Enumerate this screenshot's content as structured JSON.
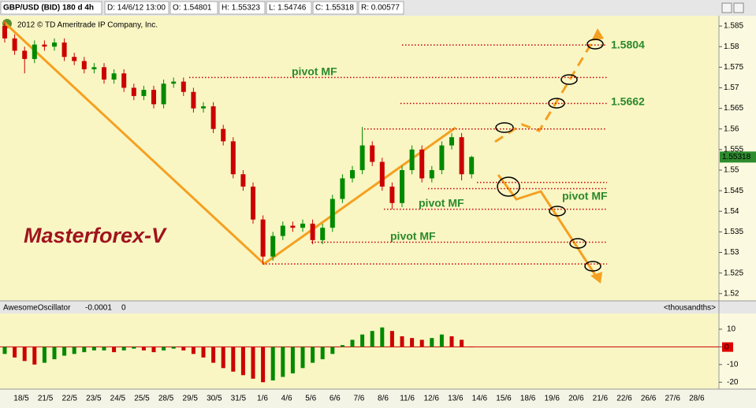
{
  "header": {
    "symbol": "GBP/USD (BID) 180 d 4h",
    "info": [
      "D: 14/6/12 13:00",
      "O: 1.54801",
      "H: 1.55323",
      "L: 1.54746",
      "C: 1.55318",
      "R: 0.00577"
    ],
    "copyright": "2012 © TD Ameritrade IP Company, Inc."
  },
  "chart_data": [
    {
      "type": "candlestick",
      "x_labels": [
        "18/5",
        "21/5",
        "22/5",
        "23/5",
        "24/5",
        "25/5",
        "28/5",
        "29/5",
        "30/5",
        "31/5",
        "1/6",
        "4/6",
        "5/6",
        "6/6",
        "7/6",
        "8/6",
        "11/6",
        "12/6",
        "13/6",
        "14/6",
        "15/6",
        "18/6",
        "19/6",
        "20/6",
        "21/6",
        "22/6",
        "26/6",
        "27/6",
        "28/6"
      ],
      "open": [
        1.585,
        1.582,
        1.579,
        1.577,
        1.5805,
        1.58,
        1.581,
        1.5775,
        1.5765,
        1.5745,
        1.575,
        1.572,
        1.5735,
        1.57,
        1.568,
        1.5695,
        1.566,
        1.571,
        1.5715,
        1.569,
        1.565,
        1.5655,
        1.56,
        1.557,
        1.549,
        1.546,
        1.538,
        1.529,
        1.534,
        1.5365,
        1.536,
        1.537,
        1.533,
        1.536,
        1.543,
        1.548,
        1.55,
        1.556,
        1.552,
        1.546,
        1.542,
        1.55,
        1.555,
        1.548,
        1.55,
        1.556,
        1.558,
        1.549
      ],
      "high": [
        1.586,
        1.583,
        1.58,
        1.5815,
        1.5815,
        1.582,
        1.582,
        1.5785,
        1.5775,
        1.576,
        1.576,
        1.5745,
        1.5745,
        1.571,
        1.5705,
        1.5705,
        1.572,
        1.5725,
        1.5725,
        1.57,
        1.5665,
        1.5665,
        1.561,
        1.558,
        1.55,
        1.547,
        1.539,
        1.535,
        1.5375,
        1.5375,
        1.538,
        1.538,
        1.537,
        1.544,
        1.549,
        1.551,
        1.5605,
        1.557,
        1.553,
        1.547,
        1.551,
        1.556,
        1.556,
        1.551,
        1.557,
        1.559,
        1.559,
        1.5535
      ],
      "low": [
        1.581,
        1.578,
        1.5735,
        1.576,
        1.579,
        1.579,
        1.5765,
        1.5755,
        1.5735,
        1.5735,
        1.571,
        1.571,
        1.569,
        1.567,
        1.567,
        1.565,
        1.565,
        1.57,
        1.568,
        1.564,
        1.564,
        1.559,
        1.556,
        1.548,
        1.545,
        1.537,
        1.5273,
        1.528,
        1.533,
        1.535,
        1.535,
        1.532,
        1.532,
        1.535,
        1.542,
        1.547,
        1.549,
        1.551,
        1.545,
        1.5405,
        1.541,
        1.549,
        1.547,
        1.547,
        1.549,
        1.555,
        1.5475,
        1.548
      ],
      "close": [
        1.582,
        1.579,
        1.577,
        1.5805,
        1.58,
        1.581,
        1.5775,
        1.5765,
        1.5745,
        1.575,
        1.572,
        1.5735,
        1.57,
        1.568,
        1.5695,
        1.566,
        1.571,
        1.5715,
        1.569,
        1.565,
        1.5655,
        1.56,
        1.557,
        1.549,
        1.546,
        1.538,
        1.529,
        1.534,
        1.5365,
        1.536,
        1.537,
        1.533,
        1.536,
        1.543,
        1.548,
        1.55,
        1.556,
        1.552,
        1.546,
        1.542,
        1.55,
        1.555,
        1.548,
        1.55,
        1.556,
        1.558,
        1.549,
        1.5532
      ],
      "up_color": "#008a00",
      "down_color": "#cc0000",
      "ylim": [
        1.519,
        1.5875
      ],
      "yticks": [
        1.585,
        1.58,
        1.575,
        1.57,
        1.565,
        1.56,
        1.555,
        1.55,
        1.545,
        1.54,
        1.535,
        1.53,
        1.525,
        1.52
      ],
      "last_price": 1.55318,
      "levels": [
        1.5804,
        1.5725,
        1.5662,
        1.56,
        1.547,
        1.5455,
        1.5405,
        1.5325,
        1.5272
      ],
      "level_color": "#cc0000",
      "annotations": [
        "pivot MF",
        "1.5804",
        "1.5662",
        "pivot MF",
        "pivot MF",
        "pivot MF",
        "Masterforex-V"
      ]
    },
    {
      "type": "bar",
      "title": "AwesomeOscillator",
      "readout": [
        "-0.0001",
        "0"
      ],
      "units": "<thousandths>",
      "values": [
        -4,
        -6,
        -8,
        -10,
        -9,
        -7,
        -5,
        -4,
        -3,
        -2,
        -2,
        -3,
        -2,
        -1,
        -2,
        -3,
        -2,
        -1,
        -2,
        -4,
        -6,
        -9,
        -12,
        -14,
        -16,
        -18,
        -20,
        -19,
        -17,
        -15,
        -12,
        -9,
        -7,
        -4,
        1,
        4,
        7,
        9,
        11,
        9,
        6,
        5,
        4,
        5,
        7,
        6,
        4,
        -0.1
      ],
      "up_color": "#008a00",
      "down_color": "#cc0000",
      "ylim": [
        -23,
        18
      ],
      "yticks": [
        10,
        0,
        -10,
        -20
      ],
      "last_value": {
        "value": -0.1,
        "label": "0"
      }
    }
  ]
}
